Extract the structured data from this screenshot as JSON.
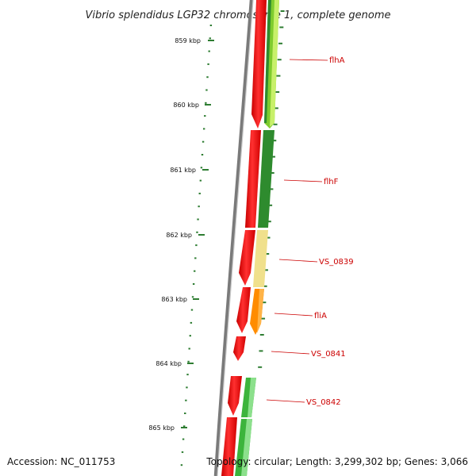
{
  "title": "Vibrio splendidus LGP32 chromosome 1, complete genome",
  "footer": {
    "accession": "Accession: NC_011753",
    "summary": "Topology: circular; Length: 3,299,302 bp; Genes: 3,066"
  },
  "colors": {
    "label": "#cc0000",
    "tick": "#2e7d32",
    "backbone": "#7a7a7a"
  },
  "ticks": [
    {
      "label": "859 kbp"
    },
    {
      "label": "860 kbp"
    },
    {
      "label": "861 kbp"
    },
    {
      "label": "862 kbp"
    },
    {
      "label": "863 kbp"
    },
    {
      "label": "864 kbp"
    },
    {
      "label": "865 kbp"
    }
  ],
  "genes": [
    {
      "name": "flhA",
      "color": "#7fcc2e",
      "accent": "#c8f06a"
    },
    {
      "name": "flhF",
      "color": "#2e8b2e",
      "accent": "#5cb85c"
    },
    {
      "name": "VS_0839",
      "color": "#f0e08c",
      "accent": "#fbf3c2"
    },
    {
      "name": "fliA",
      "color": "#ff8c00",
      "accent": "#ffb347"
    },
    {
      "name": "VS_0841",
      "color": "",
      "accent": ""
    },
    {
      "name": "VS_0842",
      "color": "#3cb43c",
      "accent": "#8ce08c"
    }
  ]
}
